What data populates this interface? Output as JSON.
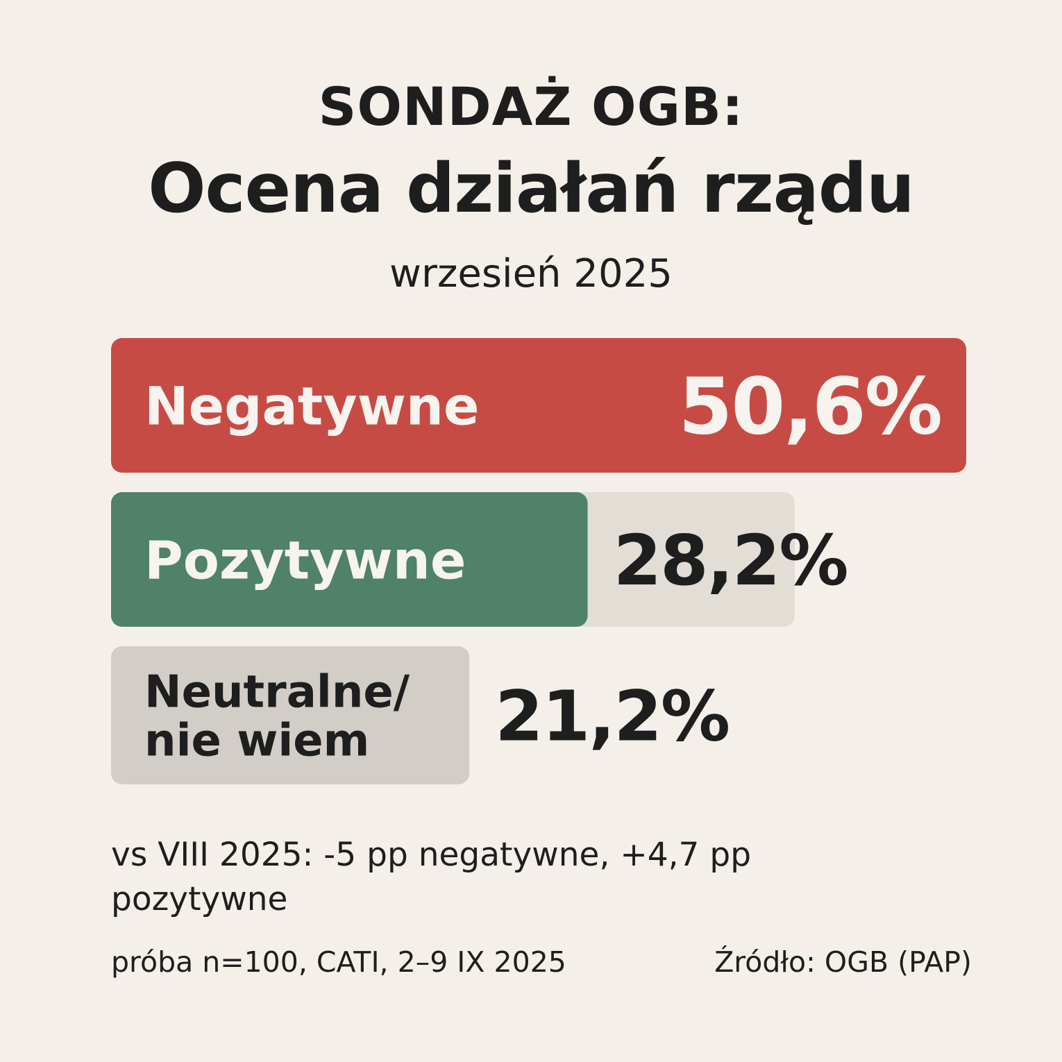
{
  "header": {
    "kicker": "SONDAŻ OGB:",
    "title": "Ocena działań rządu",
    "subtitle": "wrzesień 2025"
  },
  "chart_data": {
    "type": "bar",
    "orientation": "horizontal",
    "categories": [
      "Negatywne",
      "Pozytywne",
      [
        "Neutralne/",
        "nie wiem"
      ]
    ],
    "values": [
      50.6,
      28.2,
      21.2
    ],
    "value_labels": [
      "50,6%",
      "28,2%",
      "21,2%"
    ],
    "unit": "%",
    "colors": [
      "#c74b45",
      "#4f8268",
      "#d2cec7"
    ],
    "track_color": "#e2ded6",
    "label_colors": [
      "#f7f3ee",
      "#f7f3ee",
      "#1e1e1e"
    ],
    "value_colors": [
      "#f7f3ee",
      "#1e1e1e",
      "#1e1e1e"
    ],
    "xlim": [
      0,
      50.6
    ]
  },
  "note": "vs VIII 2025: -5 pp negatywne, +4,7 pp pozytywne",
  "footer": {
    "sample": "próba n=100, CATI, 2–9 IX 2025",
    "source": "Źródło: OGB (PAP)"
  }
}
